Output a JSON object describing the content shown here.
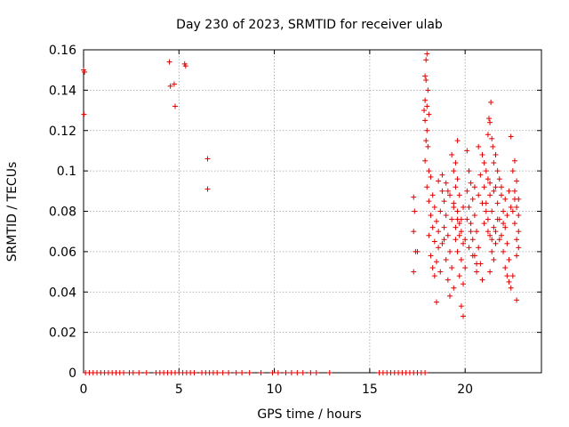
{
  "chart_data": {
    "type": "scatter",
    "title": "Day 230 of 2023, SRMTID for receiver ulab",
    "xlabel": "GPS time / hours",
    "ylabel": "SRMTID / TECUs",
    "xlim": [
      0,
      24
    ],
    "ylim": [
      0,
      0.16
    ],
    "xticks": [
      0,
      5,
      10,
      15,
      20
    ],
    "xtick_labels": [
      "0",
      "5",
      "10",
      "15",
      "20"
    ],
    "yticks": [
      0,
      0.02,
      0.04,
      0.06,
      0.08,
      0.1,
      0.12,
      0.14,
      0.16
    ],
    "ytick_labels": [
      "0",
      "0.02",
      "0.04",
      "0.06",
      "0.08",
      "0.1",
      "0.12",
      "0.14",
      "0.16"
    ],
    "grid": true,
    "marker": "+",
    "series": [
      {
        "name": "SRMTID",
        "color": "#e00000",
        "points": [
          [
            0.0,
            0.15
          ],
          [
            0.05,
            0.149
          ],
          [
            0.02,
            0.128
          ],
          [
            4.5,
            0.154
          ],
          [
            4.55,
            0.142
          ],
          [
            4.75,
            0.143
          ],
          [
            4.8,
            0.132
          ],
          [
            5.3,
            0.153
          ],
          [
            5.35,
            0.152
          ],
          [
            6.5,
            0.106
          ],
          [
            6.5,
            0.091
          ],
          [
            0.1,
            0
          ],
          [
            0.3,
            0
          ],
          [
            0.5,
            0
          ],
          [
            0.7,
            0
          ],
          [
            0.9,
            0
          ],
          [
            1.1,
            0
          ],
          [
            1.3,
            0
          ],
          [
            1.5,
            0
          ],
          [
            1.7,
            0
          ],
          [
            1.9,
            0
          ],
          [
            2.1,
            0
          ],
          [
            2.4,
            0
          ],
          [
            2.6,
            0
          ],
          [
            2.9,
            0
          ],
          [
            3.3,
            0
          ],
          [
            3.8,
            0
          ],
          [
            4.0,
            0
          ],
          [
            4.2,
            0
          ],
          [
            4.4,
            0
          ],
          [
            4.6,
            0
          ],
          [
            4.8,
            0
          ],
          [
            5.0,
            0
          ],
          [
            5.2,
            0
          ],
          [
            5.4,
            0
          ],
          [
            5.6,
            0
          ],
          [
            5.8,
            0
          ],
          [
            6.2,
            0
          ],
          [
            6.4,
            0
          ],
          [
            6.6,
            0
          ],
          [
            6.8,
            0
          ],
          [
            7.0,
            0
          ],
          [
            7.3,
            0
          ],
          [
            7.6,
            0
          ],
          [
            8.0,
            0
          ],
          [
            8.3,
            0
          ],
          [
            8.7,
            0
          ],
          [
            9.3,
            0
          ],
          [
            9.9,
            0
          ],
          [
            10.2,
            0
          ],
          [
            10.6,
            0
          ],
          [
            10.9,
            0
          ],
          [
            11.2,
            0
          ],
          [
            11.5,
            0
          ],
          [
            11.9,
            0
          ],
          [
            12.2,
            0
          ],
          [
            12.9,
            0
          ],
          [
            15.5,
            0
          ],
          [
            15.7,
            0
          ],
          [
            15.9,
            0
          ],
          [
            16.1,
            0
          ],
          [
            16.3,
            0
          ],
          [
            16.5,
            0
          ],
          [
            16.7,
            0
          ],
          [
            16.9,
            0
          ],
          [
            17.1,
            0
          ],
          [
            17.3,
            0
          ],
          [
            17.5,
            0
          ],
          [
            17.7,
            0
          ],
          [
            17.9,
            0
          ],
          [
            17.3,
            0.087
          ],
          [
            17.35,
            0.08
          ],
          [
            17.3,
            0.07
          ],
          [
            17.4,
            0.06
          ],
          [
            17.3,
            0.05
          ],
          [
            17.5,
            0.06
          ],
          [
            18.0,
            0.158
          ],
          [
            17.95,
            0.155
          ],
          [
            17.9,
            0.147
          ],
          [
            17.95,
            0.145
          ],
          [
            18.05,
            0.14
          ],
          [
            17.9,
            0.135
          ],
          [
            18.0,
            0.132
          ],
          [
            17.85,
            0.13
          ],
          [
            18.1,
            0.128
          ],
          [
            17.9,
            0.125
          ],
          [
            18.0,
            0.12
          ],
          [
            17.95,
            0.115
          ],
          [
            18.05,
            0.112
          ],
          [
            17.9,
            0.105
          ],
          [
            18.1,
            0.1
          ],
          [
            18.2,
            0.097
          ],
          [
            18.0,
            0.092
          ],
          [
            18.3,
            0.088
          ],
          [
            18.1,
            0.085
          ],
          [
            18.4,
            0.082
          ],
          [
            18.2,
            0.078
          ],
          [
            18.5,
            0.075
          ],
          [
            18.3,
            0.072
          ],
          [
            18.1,
            0.068
          ],
          [
            18.4,
            0.065
          ],
          [
            18.6,
            0.062
          ],
          [
            18.2,
            0.058
          ],
          [
            18.5,
            0.055
          ],
          [
            18.3,
            0.052
          ],
          [
            18.7,
            0.05
          ],
          [
            18.4,
            0.048
          ],
          [
            18.5,
            0.035
          ],
          [
            18.6,
            0.095
          ],
          [
            18.8,
            0.09
          ],
          [
            18.9,
            0.085
          ],
          [
            18.7,
            0.08
          ],
          [
            19.0,
            0.078
          ],
          [
            18.9,
            0.072
          ],
          [
            19.1,
            0.068
          ],
          [
            18.8,
            0.064
          ],
          [
            19.2,
            0.06
          ],
          [
            19.0,
            0.056
          ],
          [
            19.3,
            0.052
          ],
          [
            19.1,
            0.046
          ],
          [
            19.4,
            0.042
          ],
          [
            19.2,
            0.038
          ],
          [
            19.3,
            0.108
          ],
          [
            19.5,
            0.104
          ],
          [
            19.4,
            0.1
          ],
          [
            19.6,
            0.096
          ],
          [
            19.5,
            0.092
          ],
          [
            19.7,
            0.088
          ],
          [
            19.4,
            0.084
          ],
          [
            19.6,
            0.08
          ],
          [
            19.8,
            0.076
          ],
          [
            19.5,
            0.072
          ],
          [
            19.7,
            0.068
          ],
          [
            19.9,
            0.064
          ],
          [
            19.6,
            0.06
          ],
          [
            19.8,
            0.056
          ],
          [
            20.0,
            0.052
          ],
          [
            19.7,
            0.048
          ],
          [
            19.9,
            0.044
          ],
          [
            19.8,
            0.033
          ],
          [
            19.9,
            0.028
          ],
          [
            19.6,
            0.115
          ],
          [
            20.1,
            0.11
          ],
          [
            20.2,
            0.1
          ],
          [
            20.3,
            0.094
          ],
          [
            20.1,
            0.09
          ],
          [
            20.4,
            0.086
          ],
          [
            20.2,
            0.082
          ],
          [
            20.5,
            0.078
          ],
          [
            20.3,
            0.074
          ],
          [
            20.6,
            0.07
          ],
          [
            20.4,
            0.066
          ],
          [
            20.7,
            0.062
          ],
          [
            20.5,
            0.058
          ],
          [
            20.8,
            0.054
          ],
          [
            20.6,
            0.05
          ],
          [
            20.9,
            0.046
          ],
          [
            20.7,
            0.112
          ],
          [
            20.9,
            0.108
          ],
          [
            21.0,
            0.104
          ],
          [
            21.1,
            0.1
          ],
          [
            21.2,
            0.096
          ],
          [
            21.0,
            0.092
          ],
          [
            21.3,
            0.088
          ],
          [
            21.1,
            0.084
          ],
          [
            21.4,
            0.08
          ],
          [
            21.2,
            0.076
          ],
          [
            21.5,
            0.072
          ],
          [
            21.3,
            0.068
          ],
          [
            21.6,
            0.064
          ],
          [
            21.4,
            0.06
          ],
          [
            21.5,
            0.056
          ],
          [
            21.3,
            0.05
          ],
          [
            21.35,
            0.134
          ],
          [
            21.25,
            0.126
          ],
          [
            21.3,
            0.124
          ],
          [
            21.2,
            0.118
          ],
          [
            21.4,
            0.116
          ],
          [
            21.45,
            0.112
          ],
          [
            21.6,
            0.108
          ],
          [
            21.5,
            0.104
          ],
          [
            21.7,
            0.1
          ],
          [
            21.8,
            0.096
          ],
          [
            21.6,
            0.092
          ],
          [
            21.9,
            0.088
          ],
          [
            21.7,
            0.084
          ],
          [
            22.0,
            0.08
          ],
          [
            21.8,
            0.076
          ],
          [
            22.1,
            0.072
          ],
          [
            21.9,
            0.068
          ],
          [
            22.2,
            0.064
          ],
          [
            22.0,
            0.06
          ],
          [
            22.3,
            0.056
          ],
          [
            22.1,
            0.052
          ],
          [
            22.2,
            0.048
          ],
          [
            22.3,
            0.045
          ],
          [
            22.4,
            0.042
          ],
          [
            22.5,
            0.048
          ],
          [
            22.4,
            0.117
          ],
          [
            22.6,
            0.105
          ],
          [
            22.5,
            0.1
          ],
          [
            22.7,
            0.095
          ],
          [
            22.6,
            0.09
          ],
          [
            22.8,
            0.086
          ],
          [
            22.7,
            0.082
          ],
          [
            22.8,
            0.078
          ],
          [
            22.6,
            0.074
          ],
          [
            22.8,
            0.07
          ],
          [
            22.7,
            0.066
          ],
          [
            22.8,
            0.062
          ],
          [
            22.7,
            0.058
          ],
          [
            22.7,
            0.036
          ],
          [
            18.8,
            0.098
          ],
          [
            19.0,
            0.094
          ],
          [
            19.2,
            0.088
          ],
          [
            19.4,
            0.082
          ],
          [
            19.6,
            0.076
          ],
          [
            19.8,
            0.07
          ],
          [
            20.0,
            0.066
          ],
          [
            20.2,
            0.062
          ],
          [
            20.4,
            0.058
          ],
          [
            20.6,
            0.054
          ],
          [
            20.8,
            0.098
          ],
          [
            21.0,
            0.074
          ],
          [
            21.2,
            0.07
          ],
          [
            21.4,
            0.066
          ],
          [
            21.6,
            0.07
          ],
          [
            21.8,
            0.066
          ],
          [
            22.0,
            0.074
          ],
          [
            22.2,
            0.078
          ],
          [
            22.4,
            0.082
          ],
          [
            22.6,
            0.086
          ],
          [
            18.6,
            0.07
          ],
          [
            18.9,
            0.066
          ],
          [
            19.1,
            0.09
          ],
          [
            19.3,
            0.076
          ],
          [
            19.5,
            0.066
          ],
          [
            19.7,
            0.074
          ],
          [
            19.9,
            0.082
          ],
          [
            20.1,
            0.076
          ],
          [
            20.3,
            0.07
          ],
          [
            20.5,
            0.092
          ],
          [
            20.7,
            0.088
          ],
          [
            20.9,
            0.084
          ],
          [
            21.1,
            0.08
          ],
          [
            21.3,
            0.094
          ],
          [
            21.5,
            0.09
          ],
          [
            21.7,
            0.076
          ],
          [
            21.9,
            0.092
          ],
          [
            22.1,
            0.086
          ],
          [
            22.3,
            0.09
          ],
          [
            22.5,
            0.08
          ]
        ]
      }
    ]
  }
}
